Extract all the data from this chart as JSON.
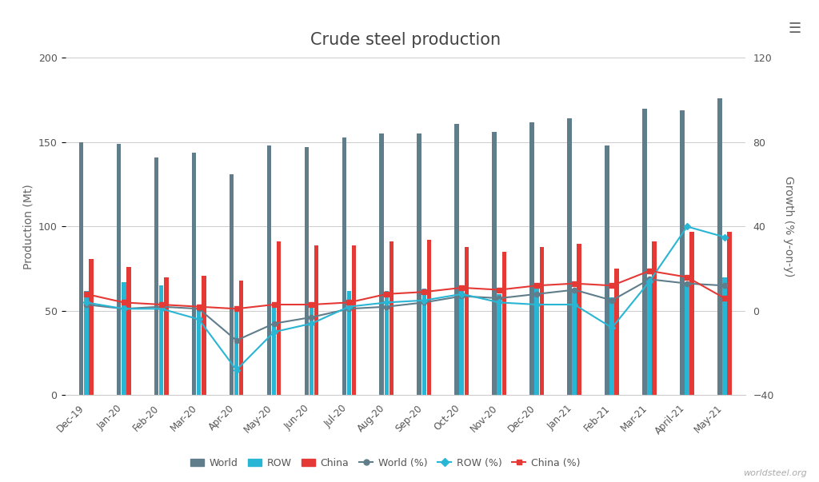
{
  "title": "Crude steel production",
  "ylabel_left": "Production (Mt)",
  "ylabel_right": "Growth (% y-on-y)",
  "categories": [
    "Dec-19",
    "Jan-20",
    "Feb-20",
    "Mar-20",
    "Apr-20",
    "May-20",
    "Jun-20",
    "Jul-20",
    "Aug-20",
    "Sep-20",
    "Oct-20",
    "Nov-20",
    "Dec-20",
    "Jan-21",
    "Feb-21",
    "Mar-21",
    "April-21",
    "May-21"
  ],
  "world_bars": [
    150,
    149,
    141,
    144,
    131,
    148,
    147,
    153,
    155,
    155,
    161,
    156,
    162,
    164,
    148,
    170,
    169,
    176
  ],
  "row_bars": [
    62,
    67,
    65,
    52,
    50,
    55,
    55,
    62,
    62,
    63,
    65,
    60,
    63,
    63,
    58,
    66,
    67,
    70
  ],
  "china_bars": [
    81,
    76,
    70,
    71,
    68,
    91,
    89,
    89,
    91,
    92,
    88,
    85,
    88,
    90,
    75,
    91,
    97,
    97
  ],
  "world_pct": [
    3,
    1,
    2,
    1,
    -14,
    -6,
    -3,
    1,
    2,
    4,
    7,
    6,
    8,
    10,
    5,
    15,
    13,
    12
  ],
  "row_pct": [
    4,
    1,
    1,
    -4,
    -28,
    -10,
    -6,
    2,
    4,
    5,
    8,
    4,
    3,
    3,
    -8,
    14,
    40,
    35
  ],
  "china_pct": [
    8,
    4,
    3,
    2,
    1,
    3,
    3,
    4,
    8,
    9,
    11,
    10,
    12,
    13,
    12,
    19,
    16,
    6
  ],
  "bar_world_color": "#607d8b",
  "bar_row_color": "#29b6d4",
  "bar_china_color": "#e53935",
  "line_world_color": "#607d8b",
  "line_row_color": "#29b6d4",
  "line_china_color": "#e53935",
  "background_color": "#ffffff",
  "ylim_left": [
    0,
    200
  ],
  "ylim_right": [
    -40,
    120
  ],
  "watermark": "worldsteel.org"
}
